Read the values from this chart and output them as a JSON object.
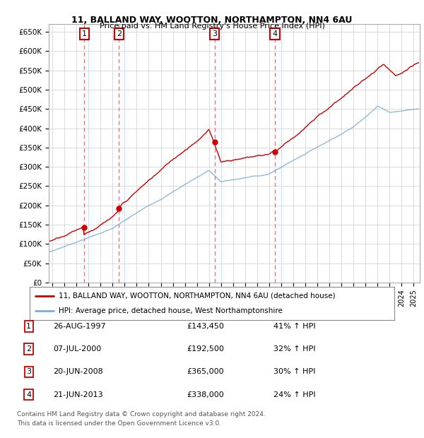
{
  "title1": "11, BALLAND WAY, WOOTTON, NORTHAMPTON, NN4 6AU",
  "title2": "Price paid vs. HM Land Registry's House Price Index (HPI)",
  "ytick_vals": [
    0,
    50000,
    100000,
    150000,
    200000,
    250000,
    300000,
    350000,
    400000,
    450000,
    500000,
    550000,
    600000,
    650000
  ],
  "ytick_labels": [
    "£0",
    "£50K",
    "£100K",
    "£150K",
    "£200K",
    "£250K",
    "£300K",
    "£350K",
    "£400K",
    "£450K",
    "£500K",
    "£550K",
    "£600K",
    "£650K"
  ],
  "x_start": 1995,
  "x_end": 2025,
  "sale_color": "#cc0000",
  "hpi_color": "#7aaddb",
  "vline_color": "#e87878",
  "box_edge_color": "#cc0000",
  "shade_color": "#ddeeff",
  "ylim": [
    0,
    670000
  ],
  "xlim": [
    1994.7,
    2025.5
  ],
  "sales": [
    {
      "year": 1997.65,
      "price": 143450,
      "label": "1"
    },
    {
      "year": 2000.52,
      "price": 192500,
      "label": "2"
    },
    {
      "year": 2008.47,
      "price": 365000,
      "label": "3"
    },
    {
      "year": 2013.47,
      "price": 338000,
      "label": "4"
    }
  ],
  "legend_sale": "11, BALLAND WAY, WOOTTON, NORTHAMPTON, NN4 6AU (detached house)",
  "legend_hpi": "HPI: Average price, detached house, West Northamptonshire",
  "table": [
    [
      "1",
      "26-AUG-1997",
      "£143,450",
      "41% ↑ HPI"
    ],
    [
      "2",
      "07-JUL-2000",
      "£192,500",
      "32% ↑ HPI"
    ],
    [
      "3",
      "20-JUN-2008",
      "£365,000",
      "30% ↑ HPI"
    ],
    [
      "4",
      "21-JUN-2013",
      "£338,000",
      "24% ↑ HPI"
    ]
  ],
  "footnote1": "Contains HM Land Registry data © Crown copyright and database right 2024.",
  "footnote2": "This data is licensed under the Open Government Licence v3.0."
}
